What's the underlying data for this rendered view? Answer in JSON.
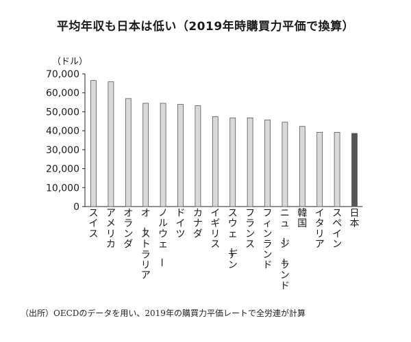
{
  "chart_data": {
    "type": "bar",
    "title": "平均年収も日本は低い（2019年時購買力平価で換算）",
    "ylabel": "（ドル）",
    "xlabel": "",
    "ylim": [
      0,
      70000
    ],
    "yticks": [
      "0",
      "10,000",
      "20,000",
      "30,000",
      "40,000",
      "50,000",
      "60,000",
      "70,000"
    ],
    "categories": [
      "スイス",
      "アメリカ",
      "オランダ",
      "オーストラリア",
      "ノルウェー",
      "ドイツ",
      "カナダ",
      "イギリス",
      "スウェーデン",
      "フランス",
      "フィンランド",
      "ニュージーランド",
      "韓国",
      "イタリア",
      "スペイン",
      "日本"
    ],
    "values": [
      66500,
      65800,
      57000,
      54500,
      54500,
      53900,
      53200,
      47400,
      46800,
      46800,
      45700,
      44500,
      42300,
      39200,
      39200,
      38600
    ],
    "highlight_category": "日本",
    "colors": {
      "bar": "#d9d9d9",
      "bar_border": "#555555",
      "highlight": "#555555",
      "axis": "#222222"
    },
    "legend": "none",
    "grid": false
  },
  "source_note": "（出所）OECDのデータを用い、2019年の購買力平価レートで全労連が計算"
}
